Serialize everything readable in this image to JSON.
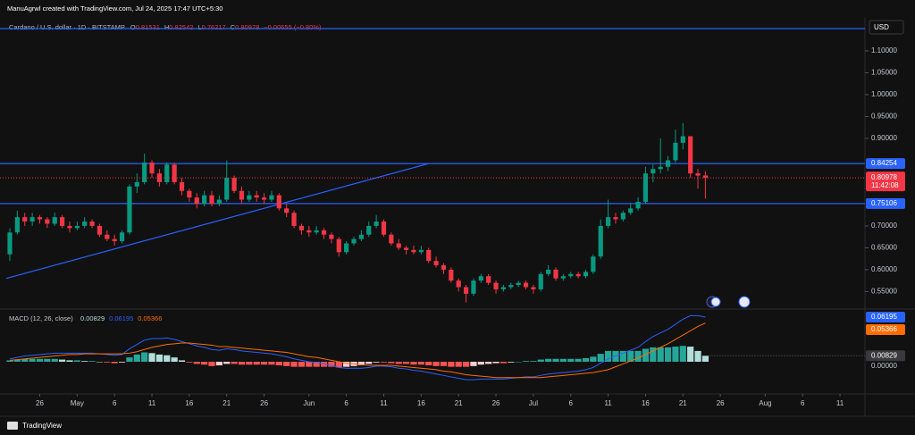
{
  "header": {
    "attribution": "ManuAgrwl created with TradingView.com, Jul 24, 2025 17:47 UTC+5:30",
    "symbol": "Cardano / U.S. dollar · 1D · BITSTAMP",
    "open_label": "O",
    "high_label": "H",
    "low_label": "L",
    "close_label": "C",
    "change": "−0.00655 (−0.80%)",
    "currency": "USD",
    "countdown": "11:42:08",
    "brand": "TradingView"
  },
  "chart_data": [
    {
      "type": "candlestick",
      "categories": [
        "Apr 22",
        "Apr 23",
        "Apr 24",
        "Apr 25",
        "Apr 26",
        "Apr 27",
        "Apr 28",
        "Apr 29",
        "Apr 30",
        "May 1",
        "May 2",
        "May 3",
        "May 4",
        "May 5",
        "May 6",
        "May 7",
        "May 8",
        "May 9",
        "May 10",
        "May 11",
        "May 12",
        "May 13",
        "May 14",
        "May 15",
        "May 16",
        "May 17",
        "May 18",
        "May 19",
        "May 20",
        "May 21",
        "May 22",
        "May 23",
        "May 24",
        "May 25",
        "May 26",
        "May 27",
        "May 28",
        "May 29",
        "May 30",
        "May 31",
        "Jun 1",
        "Jun 2",
        "Jun 3",
        "Jun 4",
        "Jun 5",
        "Jun 6",
        "Jun 7",
        "Jun 8",
        "Jun 9",
        "Jun 10",
        "Jun 11",
        "Jun 12",
        "Jun 13",
        "Jun 14",
        "Jun 15",
        "Jun 16",
        "Jun 17",
        "Jun 18",
        "Jun 19",
        "Jun 20",
        "Jun 21",
        "Jun 22",
        "Jun 23",
        "Jun 24",
        "Jun 25",
        "Jun 26",
        "Jun 27",
        "Jun 28",
        "Jun 29",
        "Jun 30",
        "Jul 1",
        "Jul 2",
        "Jul 3",
        "Jul 4",
        "Jul 5",
        "Jul 6",
        "Jul 7",
        "Jul 8",
        "Jul 9",
        "Jul 10",
        "Jul 11",
        "Jul 12",
        "Jul 13",
        "Jul 14",
        "Jul 15",
        "Jul 16",
        "Jul 17",
        "Jul 18",
        "Jul 19",
        "Jul 20",
        "Jul 21",
        "Jul 22",
        "Jul 23",
        "Jul 24"
      ],
      "open": [
        0.635,
        0.685,
        0.72,
        0.71,
        0.72,
        0.715,
        0.705,
        0.72,
        0.7,
        0.695,
        0.7,
        0.71,
        0.7,
        0.68,
        0.67,
        0.665,
        0.685,
        0.79,
        0.8,
        0.845,
        0.82,
        0.8,
        0.84,
        0.8,
        0.78,
        0.765,
        0.75,
        0.77,
        0.75,
        0.76,
        0.81,
        0.78,
        0.76,
        0.77,
        0.765,
        0.76,
        0.77,
        0.74,
        0.73,
        0.7,
        0.69,
        0.685,
        0.69,
        0.68,
        0.67,
        0.64,
        0.66,
        0.67,
        0.68,
        0.7,
        0.71,
        0.68,
        0.66,
        0.65,
        0.645,
        0.64,
        0.645,
        0.62,
        0.61,
        0.6,
        0.575,
        0.56,
        0.545,
        0.575,
        0.585,
        0.57,
        0.555,
        0.56,
        0.565,
        0.57,
        0.56,
        0.555,
        0.59,
        0.6,
        0.58,
        0.585,
        0.59,
        0.585,
        0.595,
        0.63,
        0.7,
        0.72,
        0.715,
        0.73,
        0.74,
        0.755,
        0.82,
        0.83,
        0.835,
        0.85,
        0.89,
        0.905,
        0.82,
        0.81531
      ],
      "high": [
        0.695,
        0.735,
        0.73,
        0.73,
        0.725,
        0.72,
        0.73,
        0.725,
        0.71,
        0.71,
        0.72,
        0.715,
        0.705,
        0.69,
        0.68,
        0.69,
        0.795,
        0.82,
        0.865,
        0.85,
        0.83,
        0.845,
        0.845,
        0.81,
        0.785,
        0.775,
        0.78,
        0.78,
        0.77,
        0.85,
        0.815,
        0.79,
        0.78,
        0.78,
        0.775,
        0.78,
        0.775,
        0.75,
        0.735,
        0.705,
        0.7,
        0.7,
        0.695,
        0.685,
        0.675,
        0.665,
        0.675,
        0.69,
        0.71,
        0.725,
        0.715,
        0.685,
        0.67,
        0.655,
        0.655,
        0.655,
        0.65,
        0.63,
        0.615,
        0.605,
        0.58,
        0.565,
        0.58,
        0.59,
        0.59,
        0.575,
        0.565,
        0.57,
        0.575,
        0.575,
        0.565,
        0.595,
        0.61,
        0.605,
        0.59,
        0.595,
        0.595,
        0.6,
        0.635,
        0.715,
        0.76,
        0.73,
        0.735,
        0.75,
        0.765,
        0.835,
        0.84,
        0.9,
        0.86,
        0.92,
        0.935,
        0.905,
        0.83,
        0.82542
      ],
      "low": [
        0.62,
        0.68,
        0.7,
        0.7,
        0.705,
        0.695,
        0.7,
        0.695,
        0.685,
        0.69,
        0.695,
        0.695,
        0.675,
        0.665,
        0.655,
        0.66,
        0.68,
        0.775,
        0.795,
        0.81,
        0.79,
        0.795,
        0.795,
        0.77,
        0.755,
        0.74,
        0.745,
        0.745,
        0.745,
        0.755,
        0.775,
        0.75,
        0.755,
        0.755,
        0.75,
        0.755,
        0.735,
        0.72,
        0.695,
        0.68,
        0.675,
        0.68,
        0.67,
        0.66,
        0.63,
        0.635,
        0.655,
        0.665,
        0.675,
        0.695,
        0.675,
        0.655,
        0.645,
        0.635,
        0.635,
        0.635,
        0.615,
        0.605,
        0.59,
        0.57,
        0.55,
        0.525,
        0.54,
        0.57,
        0.565,
        0.545,
        0.55,
        0.555,
        0.56,
        0.555,
        0.545,
        0.55,
        0.585,
        0.575,
        0.575,
        0.58,
        0.58,
        0.58,
        0.59,
        0.625,
        0.695,
        0.705,
        0.71,
        0.725,
        0.735,
        0.75,
        0.8,
        0.82,
        0.825,
        0.845,
        0.875,
        0.81,
        0.785,
        0.76217
      ],
      "close": [
        0.685,
        0.72,
        0.71,
        0.72,
        0.715,
        0.705,
        0.72,
        0.7,
        0.695,
        0.7,
        0.71,
        0.7,
        0.68,
        0.67,
        0.665,
        0.685,
        0.79,
        0.8,
        0.845,
        0.82,
        0.8,
        0.84,
        0.8,
        0.78,
        0.765,
        0.75,
        0.77,
        0.75,
        0.76,
        0.81,
        0.78,
        0.76,
        0.77,
        0.765,
        0.76,
        0.77,
        0.74,
        0.73,
        0.7,
        0.69,
        0.685,
        0.69,
        0.68,
        0.67,
        0.64,
        0.66,
        0.67,
        0.68,
        0.7,
        0.71,
        0.68,
        0.66,
        0.65,
        0.645,
        0.64,
        0.645,
        0.62,
        0.61,
        0.6,
        0.575,
        0.56,
        0.545,
        0.575,
        0.585,
        0.57,
        0.555,
        0.56,
        0.565,
        0.57,
        0.56,
        0.555,
        0.59,
        0.6,
        0.58,
        0.585,
        0.59,
        0.585,
        0.595,
        0.63,
        0.7,
        0.72,
        0.715,
        0.73,
        0.74,
        0.755,
        0.82,
        0.83,
        0.835,
        0.85,
        0.89,
        0.905,
        0.82,
        0.815,
        0.80978
      ],
      "up_color": "#089981",
      "down_color": "#f23645",
      "ylim": [
        0.512,
        1.1755
      ],
      "yticks": [
        {
          "value": 1.1,
          "label": "1.10000"
        },
        {
          "value": 1.05,
          "label": "1.05000"
        },
        {
          "value": 1.0,
          "label": "1.00000"
        },
        {
          "value": 0.95,
          "label": "0.95000"
        },
        {
          "value": 0.9,
          "label": "0.90000"
        },
        {
          "value": 0.7,
          "label": "0.70000"
        },
        {
          "value": 0.65,
          "label": "0.65000"
        },
        {
          "value": 0.6,
          "label": "0.60000"
        },
        {
          "value": 0.55,
          "label": "0.55000"
        }
      ],
      "hlines": [
        {
          "value": 1.151,
          "color": "#2962ff"
        },
        {
          "value": 0.84254,
          "color": "#2962ff"
        },
        {
          "value": 0.75106,
          "color": "#2962ff"
        }
      ],
      "trendline": {
        "x": [
          "Apr 22",
          "Jun 17"
        ],
        "y": [
          0.58,
          0.8425
        ],
        "color": "#2962ff"
      }
    },
    {
      "type": "macd",
      "title": "MACD (12, 26, close)",
      "series": [
        {
          "color": "#2962ff",
          "values": [
            0.004,
            0.006,
            0.008,
            0.009,
            0.01,
            0.011,
            0.012,
            0.012,
            0.012,
            0.012,
            0.012,
            0.012,
            0.011,
            0.01,
            0.009,
            0.01,
            0.018,
            0.024,
            0.03,
            0.032,
            0.032,
            0.033,
            0.031,
            0.028,
            0.025,
            0.022,
            0.02,
            0.017,
            0.016,
            0.018,
            0.017,
            0.015,
            0.014,
            0.013,
            0.012,
            0.011,
            0.009,
            0.007,
            0.004,
            0.002,
            0.0,
            -0.001,
            -0.003,
            -0.005,
            -0.008,
            -0.009,
            -0.009,
            -0.009,
            -0.008,
            -0.006,
            -0.006,
            -0.007,
            -0.009,
            -0.01,
            -0.012,
            -0.013,
            -0.015,
            -0.017,
            -0.019,
            -0.021,
            -0.023,
            -0.025,
            -0.025,
            -0.024,
            -0.024,
            -0.024,
            -0.024,
            -0.023,
            -0.022,
            -0.021,
            -0.021,
            -0.019,
            -0.017,
            -0.016,
            -0.015,
            -0.014,
            -0.013,
            -0.011,
            -0.008,
            -0.002,
            0.004,
            0.008,
            0.012,
            0.016,
            0.02,
            0.028,
            0.035,
            0.04,
            0.045,
            0.052,
            0.059,
            0.064,
            0.064,
            0.06195
          ]
        },
        {
          "color": "#ff6d00",
          "values": [
            0.002,
            0.003,
            0.004,
            0.005,
            0.006,
            0.007,
            0.008,
            0.009,
            0.01,
            0.01,
            0.011,
            0.011,
            0.011,
            0.011,
            0.011,
            0.011,
            0.012,
            0.014,
            0.017,
            0.02,
            0.022,
            0.024,
            0.025,
            0.026,
            0.026,
            0.025,
            0.024,
            0.023,
            0.021,
            0.021,
            0.02,
            0.019,
            0.018,
            0.017,
            0.016,
            0.015,
            0.014,
            0.013,
            0.011,
            0.009,
            0.007,
            0.006,
            0.004,
            0.002,
            0.0,
            -0.002,
            -0.003,
            -0.004,
            -0.005,
            -0.005,
            -0.005,
            -0.005,
            -0.006,
            -0.007,
            -0.008,
            -0.009,
            -0.01,
            -0.011,
            -0.013,
            -0.014,
            -0.016,
            -0.018,
            -0.019,
            -0.02,
            -0.021,
            -0.022,
            -0.022,
            -0.022,
            -0.022,
            -0.022,
            -0.022,
            -0.022,
            -0.021,
            -0.02,
            -0.019,
            -0.018,
            -0.017,
            -0.016,
            -0.015,
            -0.013,
            -0.011,
            -0.007,
            -0.003,
            0.001,
            0.005,
            0.01,
            0.015,
            0.02,
            0.025,
            0.031,
            0.037,
            0.043,
            0.049,
            0.05366
          ]
        }
      ],
      "histogram": {
        "colors": [
          "#26a69a",
          "#b2dfdb",
          "#ffcdd2",
          "#ff5252"
        ],
        "values": [
          0.002,
          0.003,
          0.004,
          0.004,
          0.004,
          0.004,
          0.004,
          0.003,
          0.002,
          0.002,
          0.001,
          0.001,
          0.0,
          -0.001,
          -0.002,
          -0.001,
          0.006,
          0.01,
          0.013,
          0.012,
          0.01,
          0.009,
          0.006,
          0.002,
          -0.001,
          -0.003,
          -0.004,
          -0.006,
          -0.005,
          -0.003,
          -0.003,
          -0.004,
          -0.004,
          -0.004,
          -0.004,
          -0.004,
          -0.005,
          -0.006,
          -0.007,
          -0.007,
          -0.007,
          -0.007,
          -0.007,
          -0.007,
          -0.008,
          -0.007,
          -0.006,
          -0.005,
          -0.003,
          -0.001,
          -0.001,
          -0.002,
          -0.003,
          -0.003,
          -0.004,
          -0.004,
          -0.005,
          -0.006,
          -0.006,
          -0.007,
          -0.007,
          -0.007,
          -0.006,
          -0.004,
          -0.003,
          -0.002,
          -0.002,
          -0.001,
          0.0,
          0.001,
          0.001,
          0.003,
          0.004,
          0.004,
          0.004,
          0.004,
          0.004,
          0.005,
          0.007,
          0.011,
          0.015,
          0.015,
          0.015,
          0.015,
          0.015,
          0.018,
          0.02,
          0.02,
          0.02,
          0.021,
          0.022,
          0.021,
          0.015,
          0.00829
        ]
      },
      "ylim": [
        -0.0434,
        0.0719
      ],
      "yticks": [
        {
          "value": 0,
          "label": "0.00000"
        }
      ],
      "xticks": [
        {
          "value": "Apr 26",
          "label": "26"
        },
        {
          "value": "May 1",
          "label": "May"
        },
        {
          "value": "May 6",
          "label": "6"
        },
        {
          "value": "May 11",
          "label": "11"
        },
        {
          "value": "May 16",
          "label": "16"
        },
        {
          "value": "May 21",
          "label": "21"
        },
        {
          "value": "May 26",
          "label": "26"
        },
        {
          "value": "Jun 1",
          "label": "Jun"
        },
        {
          "value": "Jun 6",
          "label": "6"
        },
        {
          "value": "Jun 11",
          "label": "11"
        },
        {
          "value": "Jun 16",
          "label": "16"
        },
        {
          "value": "Jun 21",
          "label": "21"
        },
        {
          "value": "Jun 26",
          "label": "26"
        },
        {
          "value": "Jul 1",
          "label": "Jul"
        },
        {
          "value": "Jul 6",
          "label": "6"
        },
        {
          "value": "Jul 11",
          "label": "11"
        },
        {
          "value": "Jul 16",
          "label": "16"
        },
        {
          "value": "Jul 21",
          "label": "21"
        },
        {
          "value": "Jul 26",
          "label": "26"
        },
        {
          "value": "Aug 1",
          "label": "Aug"
        },
        {
          "value": "Aug 6",
          "label": "6"
        },
        {
          "value": "Aug 11",
          "label": "11"
        }
      ]
    }
  ]
}
